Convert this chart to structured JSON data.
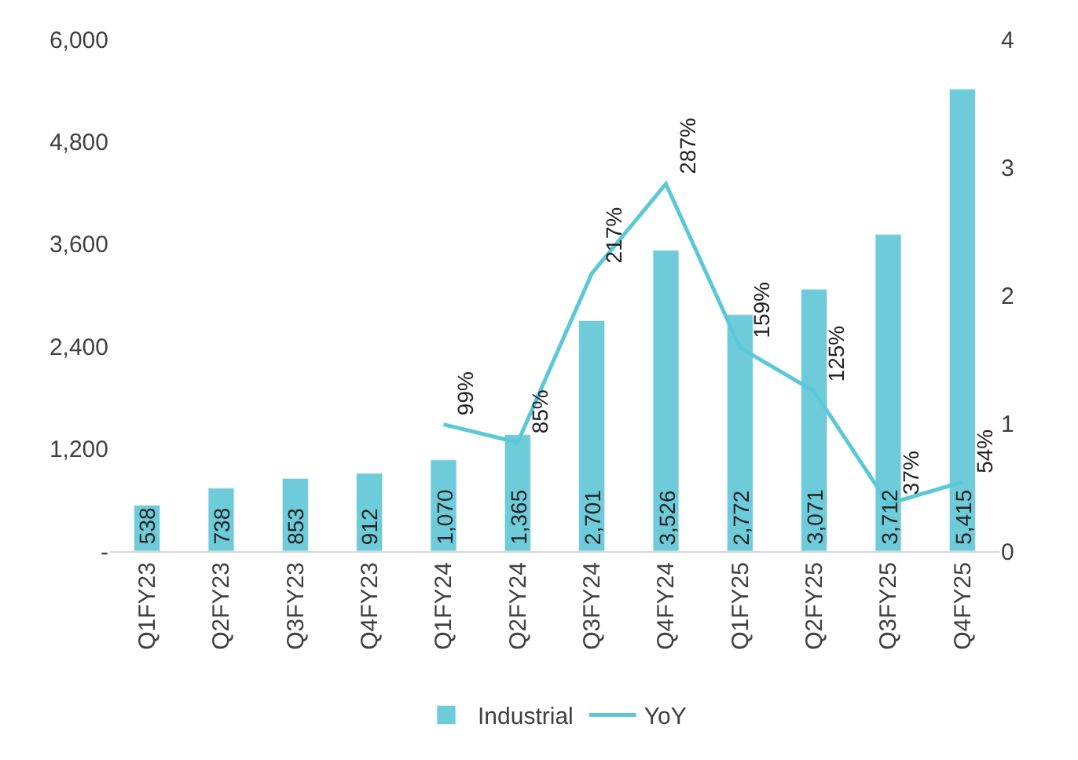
{
  "chart_data": {
    "type": "bar",
    "categories": [
      "Q1FY23",
      "Q2FY23",
      "Q3FY23",
      "Q4FY23",
      "Q1FY24",
      "Q2FY24",
      "Q3FY24",
      "Q4FY24",
      "Q1FY25",
      "Q2FY25",
      "Q3FY25",
      "Q4FY25"
    ],
    "series": [
      {
        "name": "Industrial",
        "color": "#6dcbda",
        "values": [
          538,
          738,
          853,
          912,
          1070,
          1365,
          2701,
          3526,
          2772,
          3071,
          3712,
          5415
        ],
        "value_labels": [
          "538",
          "738",
          "853",
          "912",
          "1,070",
          "1,365",
          "2,701",
          "3,526",
          "2,772",
          "3,071",
          "3,712",
          "5,415"
        ]
      },
      {
        "name": "YoY",
        "type": "line",
        "axis": "y2",
        "color": "#5bc8d8",
        "values": [
          null,
          null,
          null,
          null,
          0.99,
          0.85,
          2.17,
          2.87,
          1.59,
          1.25,
          0.37,
          0.54
        ],
        "value_labels": [
          null,
          null,
          null,
          null,
          "99%",
          "85%",
          "217%",
          "287%",
          "159%",
          "125%",
          "37%",
          "54%"
        ]
      }
    ],
    "ylim": [
      0,
      6000
    ],
    "yticks": [
      {
        "value": 0,
        "label": "-"
      },
      {
        "value": 1200,
        "label": "1,200"
      },
      {
        "value": 2400,
        "label": "2,400"
      },
      {
        "value": 3600,
        "label": "3,600"
      },
      {
        "value": 4800,
        "label": "4,800"
      },
      {
        "value": 6000,
        "label": "6,000"
      }
    ],
    "y2lim": [
      0,
      4
    ],
    "y2ticks": [
      0,
      1,
      2,
      3,
      4
    ],
    "legend": "bottom",
    "marker": "none"
  }
}
